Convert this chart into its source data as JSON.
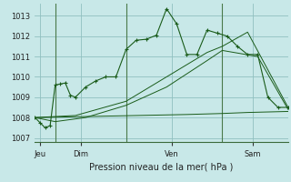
{
  "bg_color": "#c8e8e8",
  "grid_color": "#90c0c0",
  "line_color": "#1a5c1a",
  "title": "Pression niveau de la mer( hPa )",
  "ylim": [
    1006.8,
    1013.6
  ],
  "yticks": [
    1007,
    1008,
    1009,
    1010,
    1011,
    1012,
    1013
  ],
  "day_labels": [
    "Jeu",
    "Dim",
    "Ven",
    "Sam"
  ],
  "day_positions": [
    0.5,
    4.5,
    13.5,
    21.5
  ],
  "vline_positions": [
    2.0,
    9.0,
    18.5
  ],
  "series1_x": [
    0,
    0.5,
    1,
    1.5,
    2,
    2.5,
    3,
    3.5,
    4,
    5,
    6,
    7,
    8,
    9,
    10,
    11,
    12,
    13,
    14,
    15,
    16,
    17,
    18,
    19,
    20,
    21,
    22,
    23,
    24,
    25
  ],
  "series1_y": [
    1008.0,
    1007.75,
    1007.5,
    1007.6,
    1009.6,
    1009.65,
    1009.7,
    1009.1,
    1009.0,
    1009.5,
    1009.8,
    1010.0,
    1010.0,
    1011.35,
    1011.8,
    1011.85,
    1012.05,
    1013.35,
    1012.6,
    1011.1,
    1011.1,
    1012.3,
    1012.15,
    1012.0,
    1011.5,
    1011.1,
    1011.1,
    1009.0,
    1008.5,
    1008.5
  ],
  "series2_x": [
    0,
    2,
    4,
    9,
    13,
    17,
    18.5,
    21,
    25
  ],
  "series2_y": [
    1008.0,
    1008.05,
    1008.1,
    1008.8,
    1010.0,
    1011.2,
    1011.5,
    1012.2,
    1008.5
  ],
  "series3_x": [
    0,
    5,
    10,
    15,
    18.5,
    21,
    25
  ],
  "series3_y": [
    1008.0,
    1008.05,
    1008.1,
    1008.15,
    1008.2,
    1008.25,
    1008.3
  ],
  "series4_x": [
    0,
    2,
    5,
    9,
    13,
    17,
    18.5,
    22,
    25
  ],
  "series4_y": [
    1008.0,
    1007.8,
    1008.0,
    1008.6,
    1009.5,
    1010.8,
    1011.3,
    1011.0,
    1008.4
  ]
}
